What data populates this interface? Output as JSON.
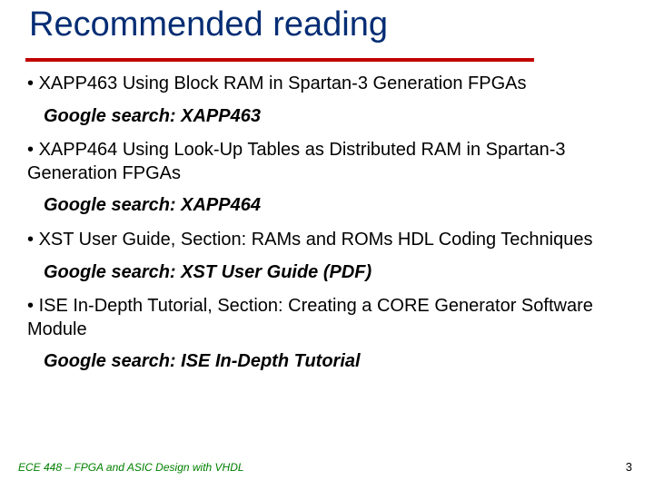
{
  "colors": {
    "title": "#052d74",
    "underline": "#c00000",
    "body": "#000000",
    "footer": "#008000"
  },
  "title": "Recommended reading",
  "items": [
    {
      "text": "XAPP463 Using Block RAM in Spartan-3 Generation FPGAs",
      "search": "Google search: XAPP463"
    },
    {
      "text": "XAPP464 Using Look-Up Tables as Distributed RAM in Spartan-3\n  Generation FPGAs",
      "search": "Google search: XAPP464"
    },
    {
      "text": "XST User Guide, Section: RAMs and ROMs HDL Coding Techniques",
      "search": "Google search: XST User Guide (PDF)"
    },
    {
      "text": "ISE In-Depth Tutorial, Section: Creating a CORE Generator Software Module",
      "search": "Google search: ISE In-Depth Tutorial"
    }
  ],
  "footer": "ECE 448 – FPGA and ASIC Design with VHDL",
  "page_number": "3"
}
